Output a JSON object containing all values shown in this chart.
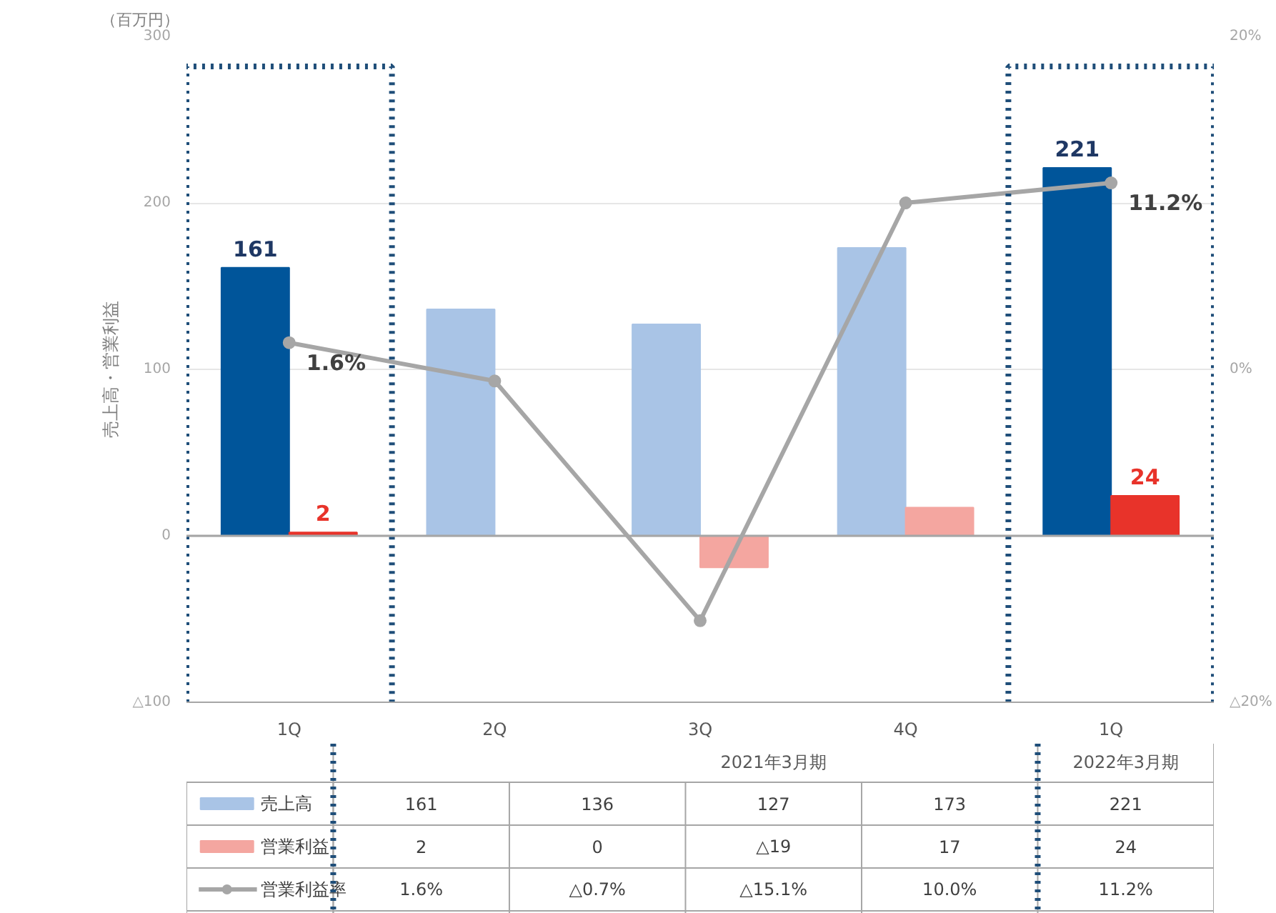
{
  "chart_data": {
    "type": "bar",
    "ylabel": "売上高・営業利益",
    "categories": [
      "1Q",
      "2Q",
      "3Q",
      "4Q",
      "1Q"
    ],
    "series": [
      {
        "name": "売上高",
        "color": "#a9c4e6",
        "colors": [
          "#00559a",
          "#a9c4e6",
          "#a9c4e6",
          "#a9c4e6",
          "#00559a"
        ],
        "values": [
          161,
          136,
          127,
          173,
          221
        ],
        "value_labels": [
          "161",
          null,
          null,
          null,
          "221"
        ]
      },
      {
        "name": "営業利益",
        "color": "#f4a6a0",
        "colors": [
          "#e8332a",
          "#f4a6a0",
          "#f4a6a0",
          "#f4a6a0",
          "#e8332a"
        ],
        "values": [
          2,
          0,
          -19,
          17,
          24
        ],
        "value_labels": [
          "2",
          null,
          null,
          null,
          "24"
        ]
      },
      {
        "name": "営業利益率",
        "type": "line",
        "axis": "y2",
        "color": "#a6a6a6",
        "marker": "circle",
        "line_style": "solid",
        "values": [
          1.6,
          -0.7,
          -15.1,
          10.0,
          11.2
        ],
        "value_labels": [
          "1.6%",
          null,
          null,
          null,
          "11.2%"
        ]
      }
    ],
    "ylim": [
      -100,
      300
    ],
    "yticks": [
      {
        "value": -100,
        "label": "△100"
      },
      0,
      100,
      200,
      300
    ],
    "y2lim": [
      -20,
      20
    ],
    "y2ticks": [
      {
        "value": -20,
        "label": "△20%"
      },
      {
        "value": 0,
        "label": "0%"
      },
      {
        "value": 20,
        "label": "20%"
      }
    ],
    "grid": "y",
    "legend": "bottom",
    "ref_lines": [
      {
        "axis": "y",
        "value": 0,
        "color": "#a6a6a6"
      }
    ],
    "annotations": [
      "（百万円）",
      "2021年3月期",
      "2022年3月期",
      "161",
      "136",
      "127",
      "173",
      "221",
      "2",
      "0",
      "△19",
      "17",
      "24",
      "1.6%",
      "△0.7%",
      "△15.1%",
      "10.0%",
      "11.2%"
    ]
  }
}
